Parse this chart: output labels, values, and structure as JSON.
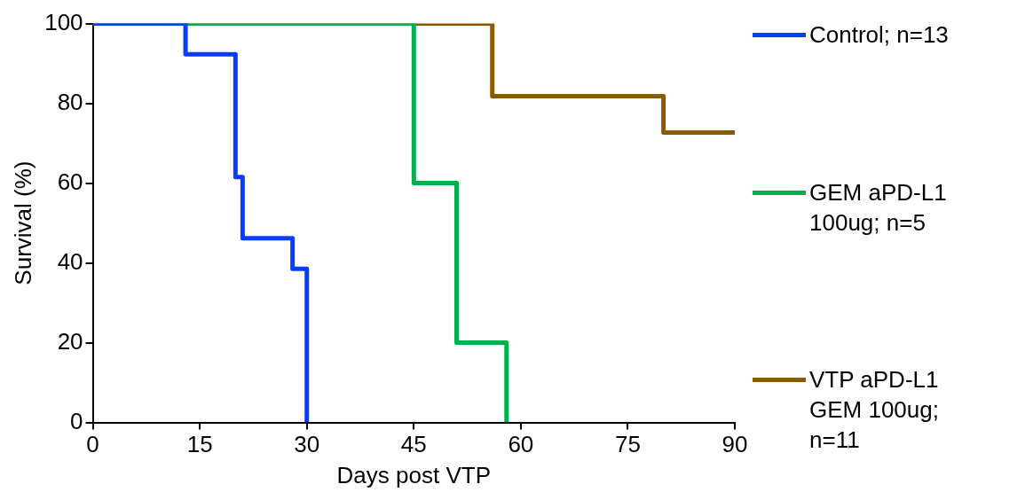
{
  "chart_data": {
    "type": "step",
    "xlabel": "Days post VTP",
    "ylabel": "Survival (%)",
    "xlim": [
      0,
      90
    ],
    "xticks": [
      0,
      15,
      30,
      45,
      60,
      75,
      90
    ],
    "ylim": [
      0,
      100
    ],
    "yticks": [
      0,
      20,
      40,
      60,
      80,
      100
    ],
    "grid": false,
    "legend": "right",
    "marker": "none",
    "series": [
      {
        "name": "Control; n=13",
        "color": "#0a3cff",
        "x": [
          0,
          13,
          20,
          21,
          28,
          30
        ],
        "values": [
          100,
          92.3,
          61.5,
          46.2,
          38.5,
          0
        ]
      },
      {
        "name": "GEM aPD-L1 100ug; n=5",
        "color": "#00b050",
        "x": [
          0,
          45,
          51,
          58
        ],
        "values": [
          100,
          60,
          20,
          0
        ]
      },
      {
        "name": "VTP aPD-L1 GEM 100ug; n=11",
        "color": "#8b5a00",
        "x": [
          0,
          56,
          80,
          90
        ],
        "values": [
          100,
          81.8,
          72.7,
          72.7
        ]
      }
    ]
  }
}
